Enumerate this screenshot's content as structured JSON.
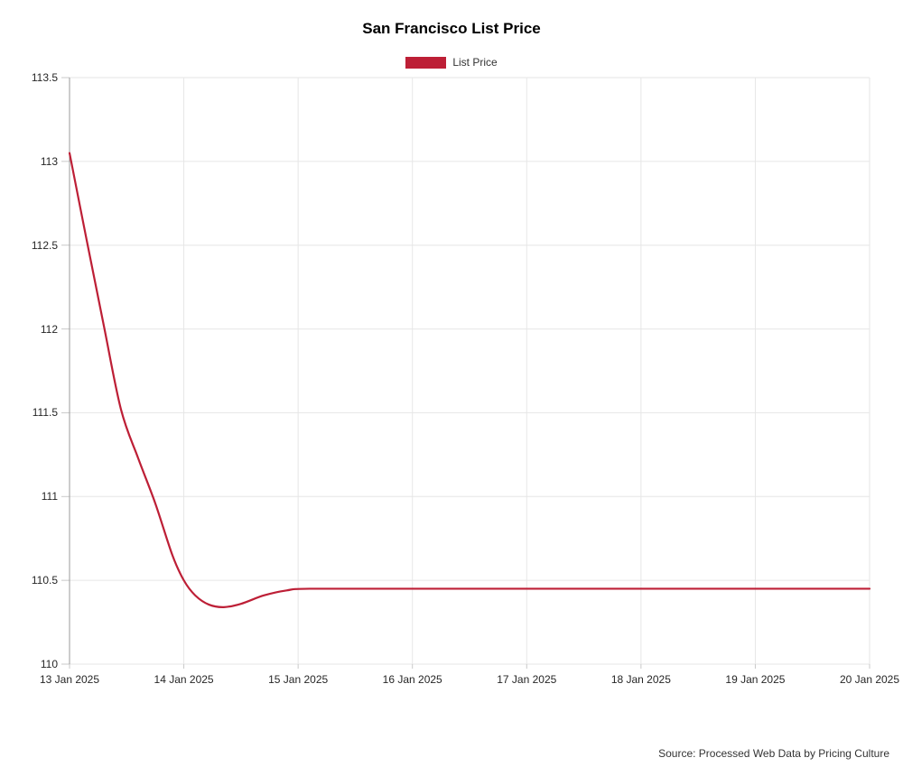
{
  "chart_data": {
    "type": "line",
    "title": "San Francisco List Price",
    "legend": [
      {
        "label": "List Price",
        "color": "#bd1f36"
      }
    ],
    "source": "Source: Processed Web Data by Pricing Culture",
    "colors": {
      "line": "#bd1f36",
      "grid": "#e6e6e6",
      "y_axis": "#9b9b9b",
      "tick": "#c9c9c9"
    },
    "ylim": [
      110,
      113.5
    ],
    "x_days": 7,
    "y_ticks": [
      "113.5",
      "113",
      "112.5",
      "112",
      "111.5",
      "111",
      "110.5",
      "110"
    ],
    "y_tick_values": [
      113.5,
      113,
      112.5,
      112,
      111.5,
      111,
      110.5,
      110
    ],
    "categories": [
      "13 Jan 2025",
      "14 Jan 2025",
      "15 Jan 2025",
      "16 Jan 2025",
      "17 Jan 2025",
      "18 Jan 2025",
      "19 Jan 2025",
      "20 Jan 2025"
    ],
    "series": [
      {
        "name": "List Price",
        "values": [
          113.05,
          110.5,
          110.45,
          110.45,
          110.45,
          110.45,
          110.45,
          110.45
        ]
      }
    ],
    "curve_samples": [
      [
        0.0,
        113.05
      ],
      [
        0.15,
        112.53
      ],
      [
        0.3,
        112.02
      ],
      [
        0.45,
        111.52
      ],
      [
        0.6,
        111.23
      ],
      [
        0.75,
        110.96
      ],
      [
        0.9,
        110.65
      ],
      [
        1.0,
        110.5
      ],
      [
        1.1,
        110.41
      ],
      [
        1.22,
        110.355
      ],
      [
        1.35,
        110.34
      ],
      [
        1.5,
        110.36
      ],
      [
        1.7,
        110.41
      ],
      [
        1.9,
        110.44
      ],
      [
        2.1,
        110.45
      ],
      [
        3.0,
        110.45
      ],
      [
        5.0,
        110.45
      ],
      [
        7.0,
        110.45
      ]
    ]
  }
}
